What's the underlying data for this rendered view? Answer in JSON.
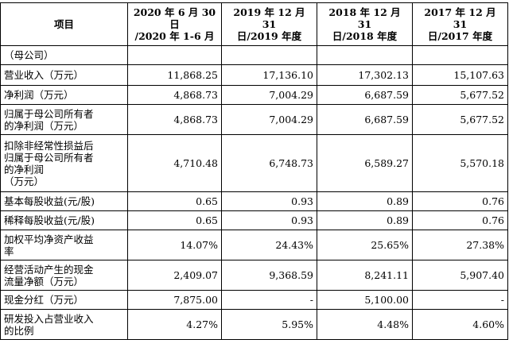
{
  "header": {
    "item": "项目",
    "col1": "2020 年 6 月 30 日\n/2020 年 1-6 月",
    "col2": "2019 年 12 月 31\n日/2019 年度",
    "col3": "2018 年 12 月 31\n日/2018 年度",
    "col4": "2017 年 12 月 31\n日/2017 年度"
  },
  "rows": [
    {
      "label": "（母公司）",
      "v1": "",
      "v2": "",
      "v3": "",
      "v4": ""
    },
    {
      "label": "营业收入（万元）",
      "v1": "11,868.25",
      "v2": "17,136.10",
      "v3": "17,302.13",
      "v4": "15,107.63"
    },
    {
      "label": "净利润（万元）",
      "v1": "4,868.73",
      "v2": "7,004.29",
      "v3": "6,687.59",
      "v4": "5,677.52"
    },
    {
      "label": "归属于母公司所有者\n的净利润（万元）",
      "v1": "4,868.73",
      "v2": "7,004.29",
      "v3": "6,687.59",
      "v4": "5,677.52"
    },
    {
      "label": "扣除非经常性损益后\n归属于母公司所有者\n的净利润\n（万元）",
      "v1": "4,710.48",
      "v2": "6,748.73",
      "v3": "6,589.27",
      "v4": "5,570.18"
    },
    {
      "label": "基本每股收益(元/股)",
      "v1": "0.65",
      "v2": "0.93",
      "v3": "0.89",
      "v4": "0.76"
    },
    {
      "label": "稀释每股收益(元/股)",
      "v1": "0.65",
      "v2": "0.93",
      "v3": "0.89",
      "v4": "0.76"
    },
    {
      "label": "加权平均净资产收益\n率",
      "v1": "14.07%",
      "v2": "24.43%",
      "v3": "25.65%",
      "v4": "27.38%"
    },
    {
      "label": "经营活动产生的现金\n流量净额（万元）",
      "v1": "2,409.07",
      "v2": "9,368.59",
      "v3": "8,241.11",
      "v4": "5,907.40"
    },
    {
      "label": "现金分红（万元）",
      "v1": "7,875.00",
      "v2": "-",
      "v3": "5,100.00",
      "v4": "-"
    },
    {
      "label": "研发投入占营业收入\n的比例",
      "v1": "4.27%",
      "v2": "5.95%",
      "v3": "4.48%",
      "v4": "4.60%"
    }
  ]
}
